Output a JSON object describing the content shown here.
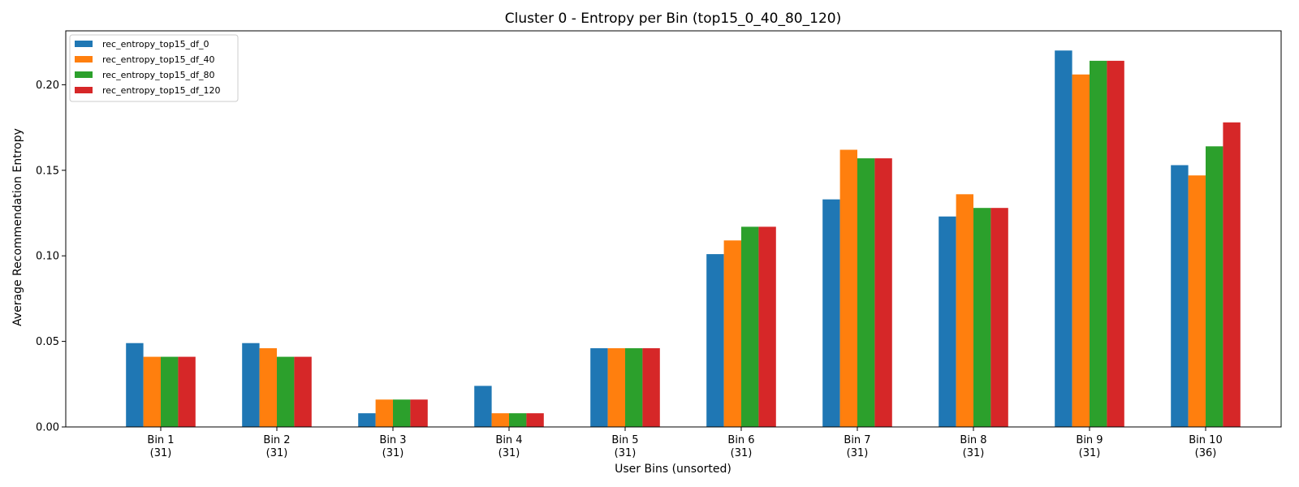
{
  "chart_data": {
    "type": "bar",
    "title": "Cluster 0 - Entropy per Bin (top15_0_40_80_120)",
    "xlabel": "User Bins (unsorted)",
    "ylabel": "Average Recommendation Entropy",
    "categories": [
      "Bin 1\n(31)",
      "Bin 2\n(31)",
      "Bin 3\n(31)",
      "Bin 4\n(31)",
      "Bin 5\n(31)",
      "Bin 6\n(31)",
      "Bin 7\n(31)",
      "Bin 8\n(31)",
      "Bin 9\n(31)",
      "Bin 10\n(36)"
    ],
    "series": [
      {
        "name": "rec_entropy_top15_df_0",
        "color": "#1f77b4",
        "values": [
          0.049,
          0.049,
          0.008,
          0.024,
          0.046,
          0.101,
          0.133,
          0.123,
          0.22,
          0.153
        ]
      },
      {
        "name": "rec_entropy_top15_df_40",
        "color": "#ff7f0e",
        "values": [
          0.041,
          0.046,
          0.016,
          0.008,
          0.046,
          0.109,
          0.162,
          0.136,
          0.206,
          0.147
        ]
      },
      {
        "name": "rec_entropy_top15_df_80",
        "color": "#2ca02c",
        "values": [
          0.041,
          0.041,
          0.016,
          0.008,
          0.046,
          0.117,
          0.157,
          0.128,
          0.214,
          0.164
        ]
      },
      {
        "name": "rec_entropy_top15_df_120",
        "color": "#d62728",
        "values": [
          0.041,
          0.041,
          0.016,
          0.008,
          0.046,
          0.117,
          0.157,
          0.128,
          0.214,
          0.178
        ]
      }
    ],
    "ylim": [
      0,
      0.2315
    ],
    "yticks": [
      0.0,
      0.05,
      0.1,
      0.15,
      0.2
    ],
    "ytick_labels": [
      "0.00",
      "0.05",
      "0.10",
      "0.15",
      "0.20"
    ],
    "legend_position": "top-left",
    "grid": false
  }
}
